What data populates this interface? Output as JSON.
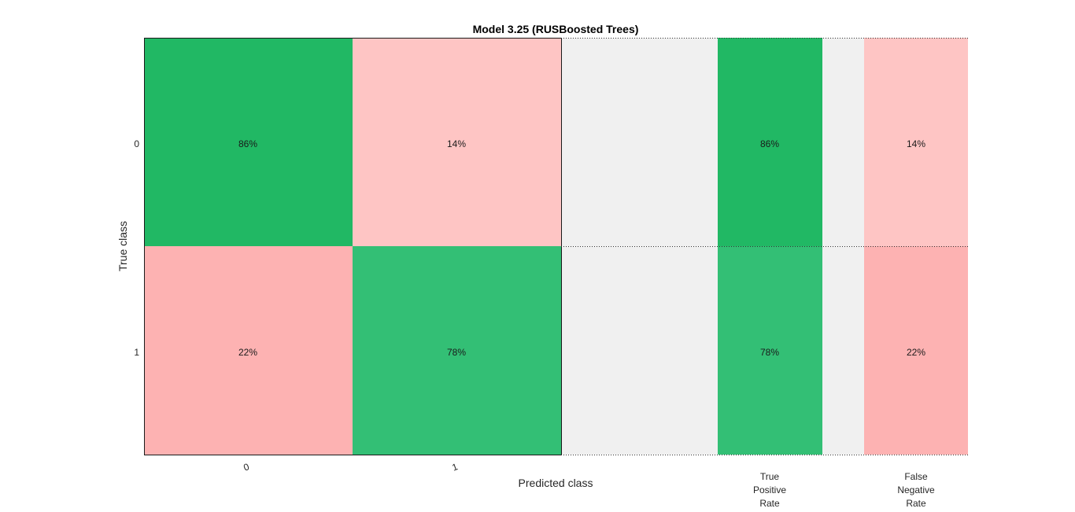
{
  "chart_data": {
    "type": "heatmap",
    "title": "Model 3.25 (RUSBoosted Trees)",
    "xlabel": "Predicted class",
    "ylabel": "True class",
    "row_labels": [
      "0",
      "1"
    ],
    "col_labels": [
      "0",
      "1"
    ],
    "matrix": [
      [
        "86%",
        "14%"
      ],
      [
        "22%",
        "78%"
      ]
    ],
    "values": [
      [
        86,
        14
      ],
      [
        22,
        78
      ]
    ],
    "summary": [
      {
        "name": "True Positive Rate",
        "label_lines": [
          "True",
          "Positive",
          "Rate"
        ],
        "values": [
          "86%",
          "78%"
        ],
        "numeric": [
          86,
          78
        ]
      },
      {
        "name": "False Negative Rate",
        "label_lines": [
          "False",
          "Negative",
          "Rate"
        ],
        "values": [
          "14%",
          "22%"
        ],
        "numeric": [
          14,
          22
        ]
      }
    ],
    "colors": {
      "correct_high": "#21b864",
      "correct_mid": "#33bf75",
      "error_low": "#fec5c4",
      "error_mid": "#fdb2b2",
      "panel_bg": "#f0f0f0"
    }
  }
}
